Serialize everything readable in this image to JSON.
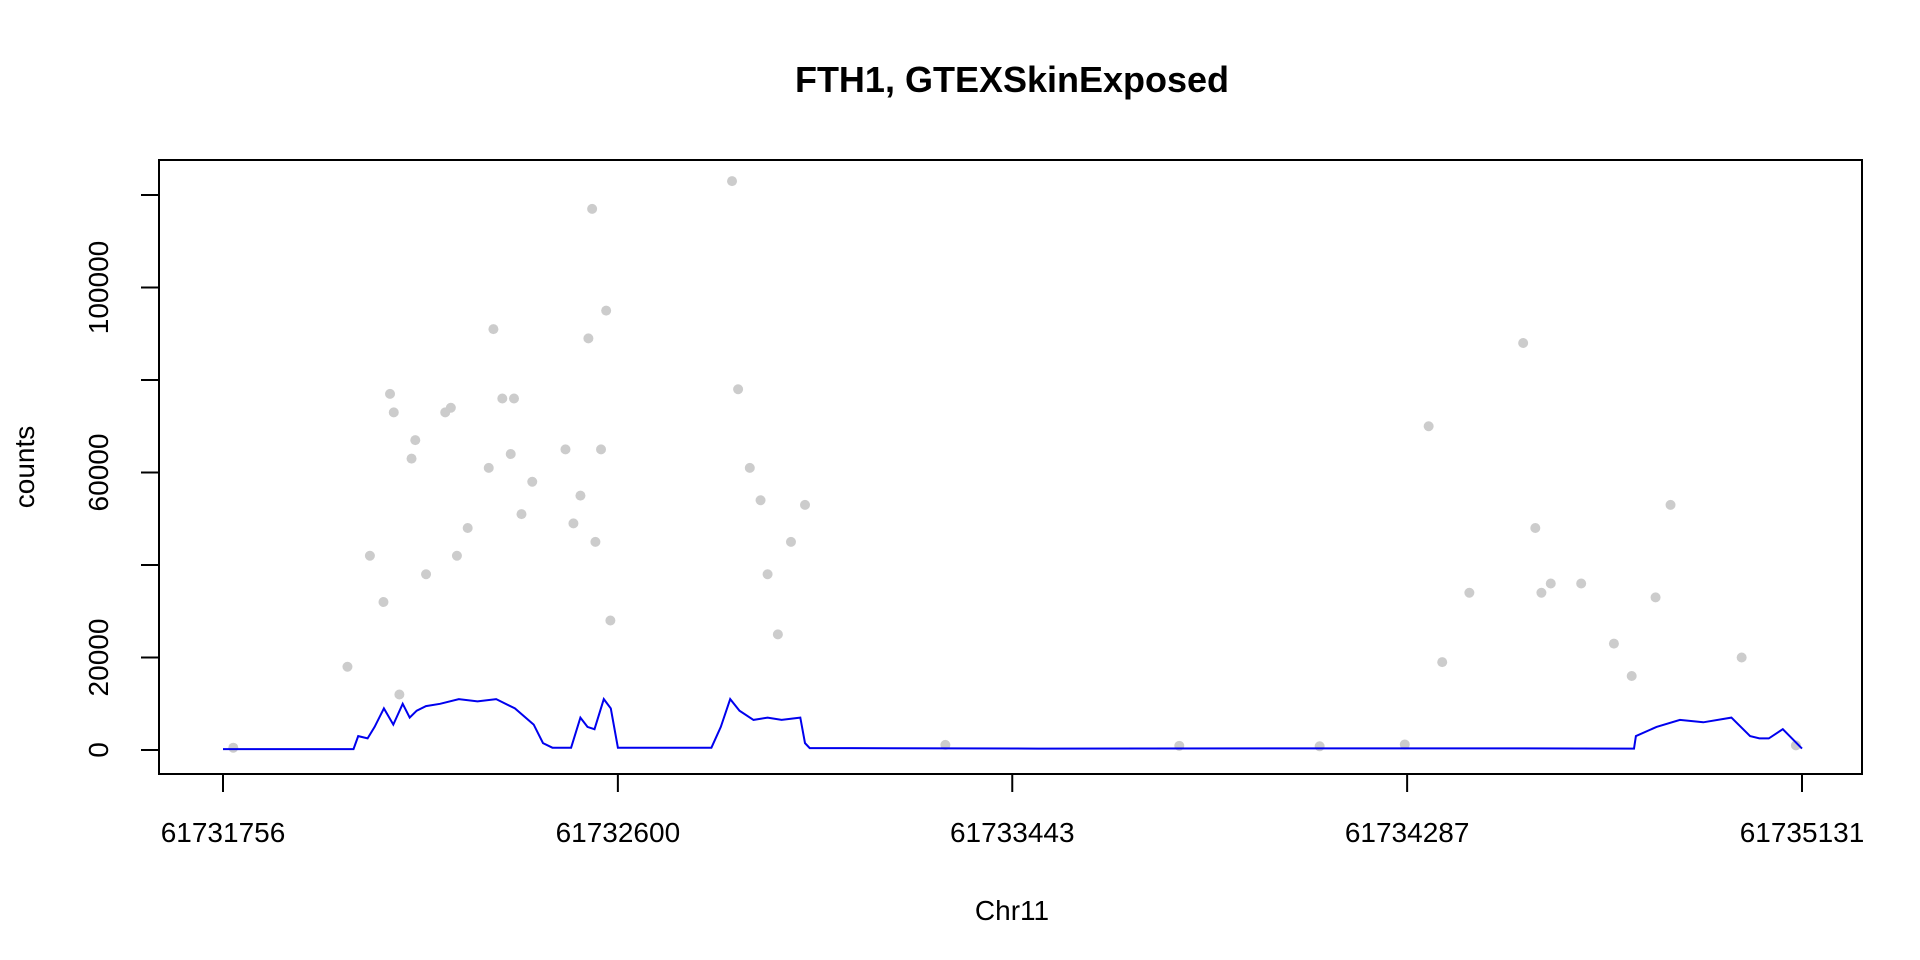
{
  "chart_data": {
    "type": "scatter",
    "title": "FTH1, GTEXSkinExposed",
    "xlabel": "Chr11",
    "ylabel": "counts",
    "xlim": [
      61731756,
      61735131
    ],
    "ylim": [
      0,
      120000
    ],
    "x_ticks": [
      61731756,
      61732600,
      61733443,
      61734287,
      61735131
    ],
    "x_tick_labels": [
      "61731756",
      "61732600",
      "61733443",
      "61734287",
      "61735131"
    ],
    "y_ticks": [
      0,
      20000,
      40000,
      60000,
      80000,
      100000,
      120000
    ],
    "y_tick_labels": [
      "0",
      "20000",
      "",
      "60000",
      "",
      "100000",
      ""
    ],
    "grid": false,
    "legend": "none",
    "colors": {
      "points": "#cccccc",
      "mean_line": "#0000ee",
      "frame": "#000000"
    },
    "series": [
      {
        "kind": "points",
        "x": [
          61731778,
          61732022,
          61732070,
          61732099,
          61732113,
          61732121,
          61732133,
          61732167,
          61732159,
          61732190,
          61732231,
          61732243,
          61732256,
          61732279,
          61732324,
          61732334,
          61732353,
          61732371,
          61732378,
          61732394,
          61732417,
          61732488,
          61732505,
          61732520,
          61732537,
          61732545,
          61732552,
          61732564,
          61732575,
          61732584,
          61732844,
          61732857,
          61732882,
          61732905,
          61732920,
          61732942,
          61732970,
          61733000,
          61734282,
          61734333,
          61734362,
          61734420,
          61734535,
          61734561,
          61734574,
          61734594,
          61734659,
          61734729,
          61734767,
          61734818,
          61734850,
          61735002,
          61735118,
          61734100,
          61733800,
          61733300
        ],
        "y": [
          500,
          18000,
          42000,
          32000,
          77000,
          73000,
          12000,
          67000,
          63000,
          38000,
          73000,
          74000,
          42000,
          48000,
          61000,
          91000,
          76000,
          64000,
          76000,
          51000,
          58000,
          65000,
          49000,
          55000,
          89000,
          117000,
          45000,
          65000,
          95000,
          28000,
          123000,
          78000,
          61000,
          54000,
          38000,
          25000,
          45000,
          53000,
          1200,
          70000,
          19000,
          34000,
          88000,
          48000,
          34000,
          36000,
          36000,
          23000,
          16000,
          33000,
          53000,
          20000,
          1000,
          800,
          900,
          1100
        ]
      },
      {
        "kind": "mean_line",
        "x": [
          61731756,
          61732035,
          61732045,
          61732065,
          61732080,
          61732100,
          61732120,
          61732140,
          61732155,
          61732170,
          61732190,
          61732220,
          61732260,
          61732300,
          61732340,
          61732380,
          61732420,
          61732440,
          61732460,
          61732500,
          61732520,
          61732535,
          61732550,
          61732570,
          61732585,
          61732600,
          61732800,
          61732820,
          61732840,
          61732860,
          61732890,
          61732920,
          61732950,
          61732990,
          61733000,
          61733010,
          61733100,
          61733500,
          61734000,
          61734500,
          61734772,
          61734776,
          61734820,
          61734870,
          61734920,
          61734980,
          61735020,
          61735040,
          61735060,
          61735090,
          61735131
        ],
        "y": [
          200,
          200,
          3000,
          2500,
          5000,
          9000,
          5500,
          10000,
          7000,
          8500,
          9500,
          10000,
          11000,
          10500,
          11000,
          9000,
          5500,
          1500,
          500,
          500,
          7000,
          5000,
          4500,
          11000,
          9000,
          500,
          500,
          5000,
          11000,
          8500,
          6500,
          7000,
          6500,
          7000,
          1500,
          400,
          400,
          300,
          350,
          350,
          300,
          3000,
          5000,
          6500,
          6000,
          7000,
          3000,
          2500,
          2500,
          4500,
          300
        ]
      }
    ]
  }
}
